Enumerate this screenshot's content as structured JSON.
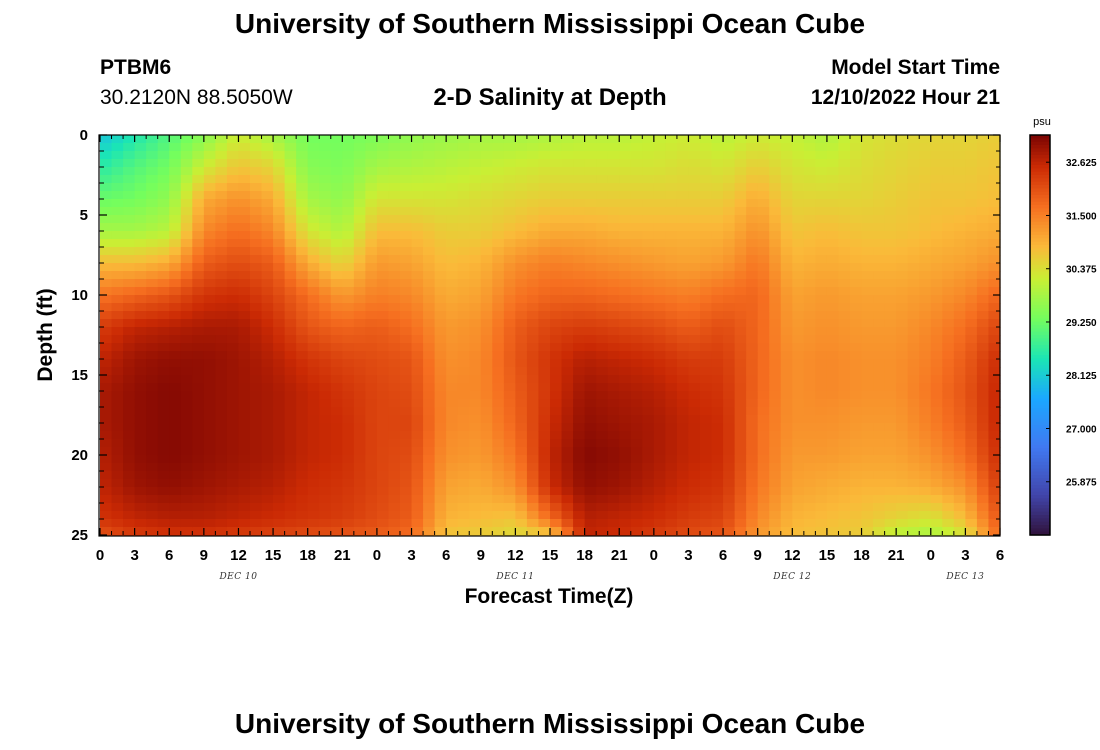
{
  "header": {
    "title": "University of Southern Mississippi Ocean Cube",
    "station_id": "PTBM6",
    "coordinates": "30.2120N  88.5050W",
    "subtitle": "2-D Salinity at Depth",
    "model_start_label": "Model Start Time",
    "model_start_value": "12/10/2022 Hour 21"
  },
  "footer": {
    "title": "University of Southern Mississippi Ocean Cube"
  },
  "chart_data": {
    "type": "heatmap",
    "title": "2-D Salinity at Depth",
    "xlabel": "Forecast Time(Z)",
    "ylabel": "Depth (ft)",
    "x_hours_range": [
      0,
      78
    ],
    "y_depth_range": [
      0,
      25
    ],
    "y_inverted": true,
    "x_ticks": [
      "0",
      "3",
      "6",
      "9",
      "12",
      "15",
      "18",
      "21",
      "0",
      "3",
      "6",
      "9",
      "12",
      "15",
      "18",
      "21",
      "0",
      "3",
      "6",
      "9",
      "12",
      "15",
      "18",
      "21",
      "0",
      "3",
      "6"
    ],
    "y_ticks": [
      "0",
      "5",
      "10",
      "15",
      "20",
      "25"
    ],
    "day_labels": [
      {
        "label": "DEC 10",
        "hour": 12
      },
      {
        "label": "DEC 11",
        "hour": 36
      },
      {
        "label": "DEC 12",
        "hour": 60
      },
      {
        "label": "DEC 13",
        "hour": 75
      }
    ],
    "colorbar": {
      "unit": "psu",
      "min": 24.75,
      "max": 33.2,
      "ticks": [
        "32.625",
        "31.500",
        "30.375",
        "29.250",
        "28.125",
        "27.000",
        "25.875"
      ],
      "colormap": "turbo"
    },
    "depth_profiles": {
      "depths_ft": [
        0,
        2,
        4,
        6,
        8,
        10,
        12,
        14,
        16,
        18,
        20,
        22,
        24,
        25
      ],
      "profiles": [
        {
          "hour": 0,
          "salinity": [
            28.0,
            28.6,
            29.2,
            29.8,
            30.8,
            31.6,
            32.3,
            32.6,
            32.8,
            32.8,
            32.7,
            32.6,
            32.4,
            32.0
          ]
        },
        {
          "hour": 3,
          "salinity": [
            28.5,
            29.0,
            29.3,
            29.8,
            30.8,
            31.8,
            32.6,
            32.9,
            33.0,
            33.0,
            33.0,
            32.9,
            32.6,
            32.3
          ]
        },
        {
          "hour": 6,
          "salinity": [
            29.0,
            29.3,
            29.6,
            30.0,
            31.0,
            32.0,
            32.7,
            33.0,
            33.1,
            33.1,
            33.1,
            33.0,
            32.7,
            32.4
          ]
        },
        {
          "hour": 9,
          "salinity": [
            29.5,
            30.2,
            31.0,
            31.4,
            31.9,
            32.4,
            32.8,
            33.0,
            33.0,
            33.0,
            33.0,
            32.9,
            32.7,
            32.4
          ]
        },
        {
          "hour": 12,
          "salinity": [
            30.2,
            30.7,
            31.3,
            31.7,
            32.1,
            32.5,
            32.8,
            32.9,
            32.9,
            32.9,
            32.9,
            32.8,
            32.6,
            32.3
          ]
        },
        {
          "hour": 15,
          "salinity": [
            29.8,
            30.5,
            31.0,
            31.4,
            31.9,
            32.2,
            32.5,
            32.7,
            32.8,
            32.8,
            32.8,
            32.7,
            32.5,
            32.2
          ]
        },
        {
          "hour": 18,
          "salinity": [
            29.3,
            29.5,
            29.8,
            30.3,
            31.0,
            31.7,
            32.0,
            32.4,
            32.6,
            32.6,
            32.6,
            32.5,
            32.4,
            32.1
          ]
        },
        {
          "hour": 21,
          "salinity": [
            29.3,
            29.4,
            29.6,
            29.9,
            30.5,
            31.2,
            31.8,
            32.2,
            32.4,
            32.5,
            32.5,
            32.4,
            32.3,
            32.0
          ]
        },
        {
          "hour": 24,
          "salinity": [
            29.4,
            29.8,
            30.3,
            30.8,
            31.2,
            31.5,
            31.9,
            32.1,
            32.2,
            32.2,
            32.2,
            32.2,
            32.1,
            31.9
          ]
        },
        {
          "hour": 27,
          "salinity": [
            29.6,
            29.9,
            30.3,
            30.8,
            31.1,
            31.4,
            31.7,
            32.0,
            32.1,
            32.2,
            32.1,
            32.0,
            31.9,
            31.7
          ]
        },
        {
          "hour": 30,
          "salinity": [
            29.7,
            30.0,
            30.3,
            30.6,
            30.8,
            31.0,
            31.2,
            31.3,
            31.4,
            31.4,
            31.3,
            31.1,
            30.9,
            30.7
          ]
        },
        {
          "hour": 33,
          "salinity": [
            29.8,
            30.1,
            30.4,
            30.6,
            30.9,
            31.1,
            31.3,
            31.4,
            31.4,
            31.3,
            31.2,
            31.0,
            30.8,
            30.6
          ]
        },
        {
          "hour": 36,
          "salinity": [
            29.8,
            30.2,
            30.5,
            30.8,
            31.3,
            31.6,
            31.9,
            32.0,
            31.9,
            31.8,
            31.6,
            31.3,
            30.7,
            30.4
          ]
        },
        {
          "hour": 39,
          "salinity": [
            29.9,
            30.3,
            30.6,
            31.0,
            31.5,
            31.8,
            32.2,
            32.4,
            32.4,
            32.5,
            32.6,
            32.5,
            31.7,
            30.6
          ]
        },
        {
          "hour": 42,
          "salinity": [
            30.0,
            30.3,
            30.6,
            31.0,
            31.4,
            31.8,
            32.3,
            32.7,
            32.9,
            33.0,
            33.1,
            33.0,
            32.7,
            32.6
          ]
        },
        {
          "hour": 45,
          "salinity": [
            30.0,
            30.3,
            30.6,
            30.9,
            31.3,
            31.7,
            32.2,
            32.6,
            32.8,
            32.9,
            33.0,
            32.9,
            32.6,
            32.5
          ]
        },
        {
          "hour": 48,
          "salinity": [
            30.1,
            30.3,
            30.6,
            30.9,
            31.2,
            31.6,
            32.1,
            32.5,
            32.7,
            32.8,
            32.8,
            32.7,
            32.5,
            32.3
          ]
        },
        {
          "hour": 51,
          "salinity": [
            30.2,
            30.4,
            30.6,
            30.9,
            31.1,
            31.5,
            31.9,
            32.3,
            32.5,
            32.6,
            32.6,
            32.5,
            32.3,
            32.1
          ]
        },
        {
          "hour": 54,
          "salinity": [
            30.0,
            30.3,
            30.6,
            30.9,
            31.2,
            31.7,
            32.1,
            32.3,
            32.4,
            32.5,
            32.5,
            32.4,
            32.2,
            32.0
          ]
        },
        {
          "hour": 57,
          "salinity": [
            30.2,
            30.6,
            31.0,
            31.3,
            31.6,
            31.8,
            31.8,
            31.8,
            31.8,
            31.7,
            31.7,
            31.6,
            31.4,
            31.2
          ]
        },
        {
          "hour": 60,
          "salinity": [
            30.1,
            30.3,
            30.5,
            30.7,
            30.9,
            31.1,
            31.2,
            31.3,
            31.3,
            31.3,
            31.2,
            31.1,
            30.9,
            30.8
          ]
        },
        {
          "hour": 63,
          "salinity": [
            29.9,
            30.2,
            30.5,
            30.8,
            31.0,
            31.2,
            31.3,
            31.4,
            31.4,
            31.3,
            31.2,
            31.0,
            30.8,
            30.7
          ]
        },
        {
          "hour": 66,
          "salinity": [
            30.3,
            30.4,
            30.5,
            30.7,
            30.9,
            31.1,
            31.2,
            31.3,
            31.3,
            31.2,
            31.1,
            30.9,
            30.7,
            30.6
          ]
        },
        {
          "hour": 69,
          "salinity": [
            30.4,
            30.5,
            30.6,
            30.7,
            30.9,
            31.1,
            31.2,
            31.3,
            31.3,
            31.2,
            31.1,
            30.9,
            30.5,
            30.0
          ]
        },
        {
          "hour": 72,
          "salinity": [
            30.5,
            30.6,
            30.7,
            30.8,
            31.0,
            31.2,
            31.4,
            31.5,
            31.6,
            31.5,
            31.3,
            31.0,
            30.3,
            29.8
          ]
        },
        {
          "hour": 75,
          "salinity": [
            30.5,
            30.6,
            30.7,
            30.9,
            31.1,
            31.4,
            31.7,
            31.9,
            32.0,
            31.9,
            31.7,
            31.3,
            30.8,
            30.3
          ]
        },
        {
          "hour": 78,
          "salinity": [
            30.6,
            30.7,
            30.8,
            31.0,
            31.3,
            31.8,
            32.2,
            32.5,
            32.6,
            32.6,
            32.5,
            32.3,
            32.0,
            31.8
          ]
        }
      ]
    }
  }
}
